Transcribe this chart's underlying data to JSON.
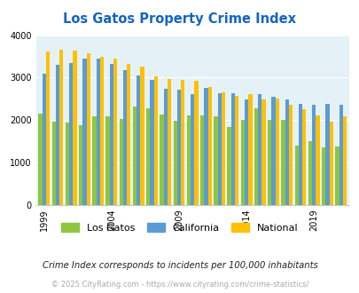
{
  "title": "Los Gatos Property Crime Index",
  "years": [
    1999,
    2000,
    2001,
    2002,
    2003,
    2004,
    2005,
    2006,
    2007,
    2008,
    2009,
    2010,
    2011,
    2012,
    2013,
    2014,
    2015,
    2016,
    2017,
    2018,
    2019,
    2020,
    2021
  ],
  "los_gatos": [
    2150,
    1960,
    1950,
    1880,
    2080,
    2100,
    2030,
    2330,
    2270,
    2130,
    1980,
    2110,
    2110,
    2100,
    1840,
    2010,
    2270,
    2010,
    2010,
    1400,
    1510,
    1360,
    1370
  ],
  "california": [
    3100,
    3310,
    3350,
    3440,
    3440,
    3330,
    3170,
    3050,
    2950,
    2730,
    2720,
    2610,
    2760,
    2640,
    2640,
    2480,
    2620,
    2560,
    2490,
    2380,
    2370,
    2390,
    2360
  ],
  "national": [
    3620,
    3650,
    3630,
    3580,
    3490,
    3440,
    3320,
    3250,
    3040,
    2960,
    2940,
    2920,
    2770,
    2660,
    2570,
    2620,
    2490,
    2500,
    2360,
    2260,
    2110,
    1960,
    2100
  ],
  "los_gatos_color": "#8dc63f",
  "california_color": "#5b9bd5",
  "national_color": "#ffc000",
  "bg_color": "#e4f2f7",
  "title_color": "#1565c0",
  "ylim": [
    0,
    4000
  ],
  "yticks": [
    0,
    1000,
    2000,
    3000,
    4000
  ],
  "xtick_years": [
    1999,
    2004,
    2009,
    2014,
    2019
  ],
  "footnote": "Crime Index corresponds to incidents per 100,000 inhabitants",
  "copyright": "© 2025 CityRating.com - https://www.cityrating.com/crime-statistics/",
  "legend_labels": [
    "Los Gatos",
    "California",
    "National"
  ]
}
